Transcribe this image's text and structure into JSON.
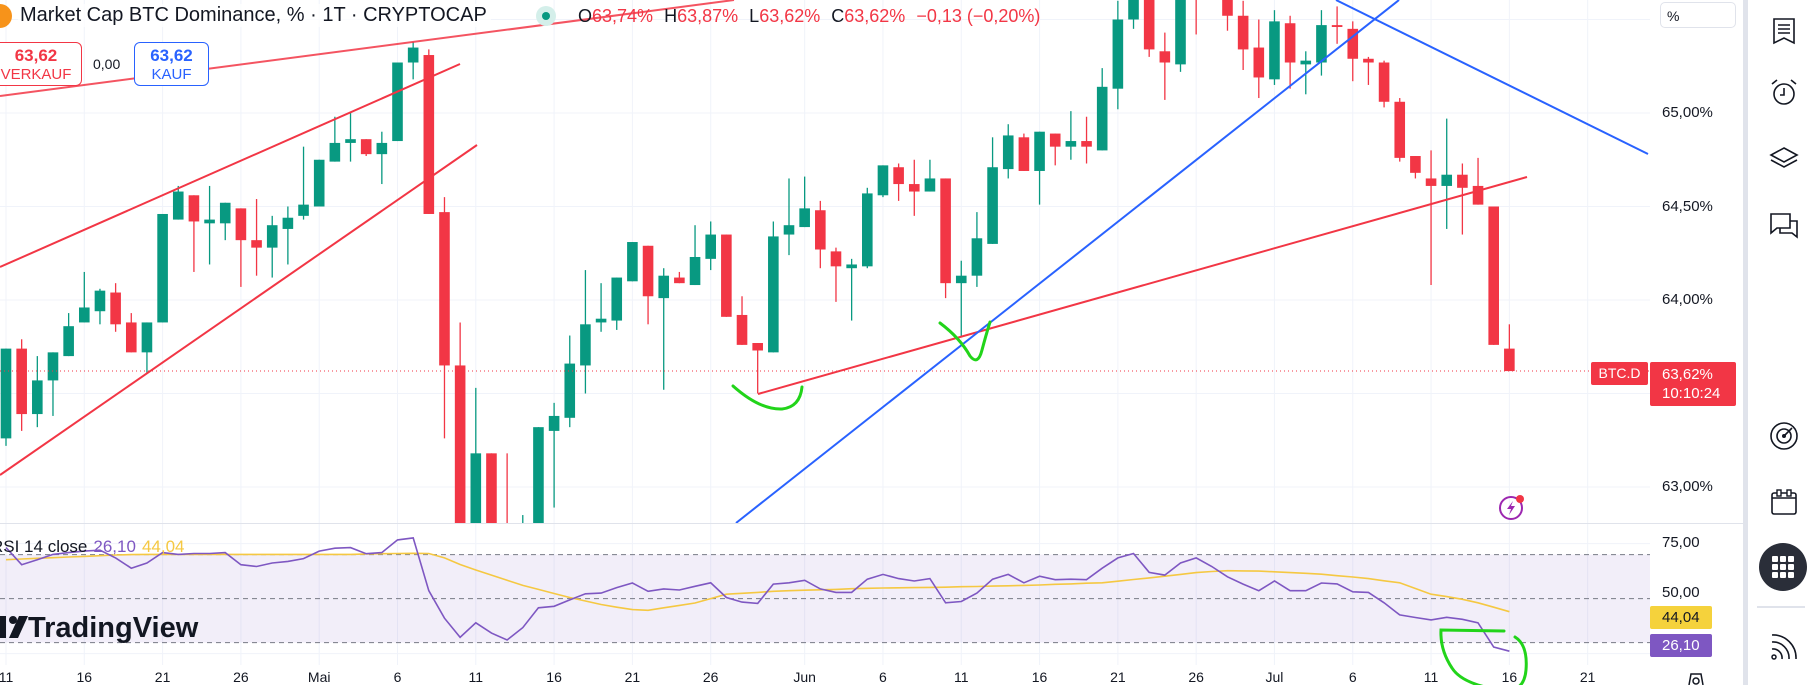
{
  "header": {
    "title": "Market Cap BTC Dominance, % · 1T · CRYPTOCAP",
    "ohlc": {
      "o_key": "O",
      "o": "63,74%",
      "h_key": "H",
      "h": "63,87%",
      "l_key": "L",
      "l": "63,62%",
      "c_key": "C",
      "c": "63,62%",
      "change": "−0,13 (−0,20%)"
    },
    "sell": {
      "price": "63,62",
      "label": "VERKAUF"
    },
    "spread": "0,00",
    "buy": {
      "price": "63,62",
      "label": "KAUF"
    }
  },
  "price_axis": {
    "unit_button": "%",
    "labels": [
      {
        "value": 65.0,
        "label": "65,00%"
      },
      {
        "value": 64.5,
        "label": "64,50%"
      },
      {
        "value": 64.0,
        "label": "64,00%"
      },
      {
        "value": 63.0,
        "label": "63,00%"
      }
    ],
    "symbol_tag": "BTC.D",
    "current_price": "63,62%",
    "countdown": "10:10:24"
  },
  "rsi": {
    "legend": "RSI 14 close",
    "value_label": "26,10",
    "ma_label": "44,04",
    "axis_labels": [
      {
        "value": 75,
        "label": "75,00"
      },
      {
        "value": 50,
        "label": "50,00"
      }
    ],
    "upper_band": 70,
    "middle_band": 50,
    "lower_band": 30
  },
  "watermark": "TradingView",
  "time_axis": [
    {
      "date": "04-11",
      "label": "11"
    },
    {
      "date": "04-16",
      "label": "16"
    },
    {
      "date": "04-21",
      "label": "21"
    },
    {
      "date": "04-26",
      "label": "26"
    },
    {
      "date": "05-01",
      "label": "Mai"
    },
    {
      "date": "05-06",
      "label": "6"
    },
    {
      "date": "05-11",
      "label": "11"
    },
    {
      "date": "05-16",
      "label": "16"
    },
    {
      "date": "05-21",
      "label": "21"
    },
    {
      "date": "05-26",
      "label": "26"
    },
    {
      "date": "06-01",
      "label": "Jun"
    },
    {
      "date": "06-06",
      "label": "6"
    },
    {
      "date": "06-11",
      "label": "11"
    },
    {
      "date": "06-16",
      "label": "16"
    },
    {
      "date": "06-21",
      "label": "21"
    },
    {
      "date": "06-26",
      "label": "26"
    },
    {
      "date": "07-01",
      "label": "Jul"
    },
    {
      "date": "07-06",
      "label": "6"
    },
    {
      "date": "07-11",
      "label": "11"
    },
    {
      "date": "07-16",
      "label": "16"
    },
    {
      "date": "07-21",
      "label": "21"
    }
  ],
  "colors": {
    "up": "#089981",
    "down": "#f23645",
    "rsi": "#7e57c2",
    "rsi_ma": "#f5c842",
    "trend_red": "#f23645",
    "trend_blue": "#2962ff",
    "annotation": "#22d41a"
  },
  "sidebar": {
    "icons": [
      "watchlist-icon",
      "alarm-clock-icon",
      "layers-icon",
      "chat-icon",
      "target-icon",
      "calendar-icon",
      "apps-grid-icon",
      "broadcast-icon"
    ]
  },
  "chart_data": {
    "type": "candlestick",
    "symbol": "BTC.D",
    "interval": "1T",
    "ylim": [
      62.82,
      65.6
    ],
    "grid": true,
    "candles": [
      [
        "04-11",
        63.26,
        63.74,
        63.22,
        63.74
      ],
      [
        "04-12",
        63.74,
        63.79,
        63.3,
        63.39
      ],
      [
        "04-13",
        63.39,
        63.7,
        63.32,
        63.57
      ],
      [
        "04-14",
        63.57,
        63.72,
        63.38,
        63.72
      ],
      [
        "04-15",
        63.7,
        63.93,
        63.7,
        63.86
      ],
      [
        "04-16",
        63.88,
        64.15,
        63.88,
        63.96
      ],
      [
        "04-17",
        63.94,
        64.06,
        63.87,
        64.05
      ],
      [
        "04-18",
        64.04,
        64.09,
        63.83,
        63.87
      ],
      [
        "04-19",
        63.88,
        63.93,
        63.72,
        63.72
      ],
      [
        "04-20",
        63.72,
        63.88,
        63.61,
        63.88
      ],
      [
        "04-21",
        63.88,
        64.46,
        63.88,
        64.46
      ],
      [
        "04-22",
        64.43,
        64.61,
        64.43,
        64.58
      ],
      [
        "04-23",
        64.56,
        64.56,
        64.15,
        64.42
      ],
      [
        "04-24",
        64.41,
        64.61,
        64.19,
        64.43
      ],
      [
        "04-25",
        64.41,
        64.52,
        64.32,
        64.52
      ],
      [
        "04-26",
        64.49,
        64.49,
        64.07,
        64.32
      ],
      [
        "04-27",
        64.32,
        64.54,
        64.13,
        64.28
      ],
      [
        "04-28",
        64.28,
        64.45,
        64.12,
        64.4
      ],
      [
        "04-29",
        64.38,
        64.5,
        64.19,
        64.44
      ],
      [
        "04-30",
        64.45,
        64.82,
        64.43,
        64.51
      ],
      [
        "05-01",
        64.5,
        64.75,
        64.5,
        64.75
      ],
      [
        "05-02",
        64.74,
        64.98,
        64.74,
        64.84
      ],
      [
        "05-03",
        64.84,
        65.0,
        64.74,
        64.86
      ],
      [
        "05-04",
        64.86,
        64.86,
        64.77,
        64.78
      ],
      [
        "05-05",
        64.78,
        64.9,
        64.62,
        64.84
      ],
      [
        "05-06",
        64.85,
        65.27,
        64.85,
        65.27
      ],
      [
        "05-07",
        65.27,
        65.38,
        65.18,
        65.35
      ],
      [
        "05-08",
        65.31,
        65.34,
        64.46,
        64.46
      ],
      [
        "05-09",
        64.47,
        64.55,
        63.26,
        63.65
      ],
      [
        "05-10",
        63.65,
        63.88,
        62.6,
        62.75
      ],
      [
        "05-11",
        62.7,
        63.53,
        62.62,
        63.18
      ],
      [
        "05-12",
        63.18,
        63.18,
        62.65,
        62.75
      ],
      [
        "05-13",
        62.8,
        63.18,
        62.55,
        62.7
      ],
      [
        "05-14",
        62.7,
        62.85,
        62.55,
        62.75
      ],
      [
        "05-15",
        62.78,
        63.32,
        62.7,
        63.32
      ],
      [
        "05-16",
        63.3,
        63.45,
        62.89,
        63.38
      ],
      [
        "05-17",
        63.37,
        63.81,
        63.32,
        63.66
      ],
      [
        "05-18",
        63.65,
        64.16,
        63.5,
        63.87
      ],
      [
        "05-19",
        63.88,
        64.09,
        63.83,
        63.9
      ],
      [
        "05-20",
        63.89,
        64.12,
        63.84,
        64.12
      ],
      [
        "05-21",
        64.1,
        64.31,
        64.1,
        64.31
      ],
      [
        "05-22",
        64.29,
        64.29,
        63.87,
        64.02
      ],
      [
        "05-23",
        64.01,
        64.17,
        63.52,
        64.13
      ],
      [
        "05-24",
        64.12,
        64.15,
        64.09,
        64.09
      ],
      [
        "05-25",
        64.08,
        64.4,
        64.08,
        64.23
      ],
      [
        "05-26",
        64.22,
        64.42,
        64.16,
        64.35
      ],
      [
        "05-27",
        64.35,
        64.35,
        63.91,
        63.91
      ],
      [
        "05-28",
        63.92,
        64.02,
        63.76,
        63.76
      ],
      [
        "05-29",
        63.77,
        63.77,
        63.5,
        63.73
      ],
      [
        "05-30",
        63.72,
        64.42,
        63.72,
        64.34
      ],
      [
        "05-31",
        64.35,
        64.65,
        64.24,
        64.4
      ],
      [
        "06-01",
        64.39,
        64.66,
        64.39,
        64.49
      ],
      [
        "06-02",
        64.48,
        64.53,
        64.17,
        64.27
      ],
      [
        "06-03",
        64.26,
        64.28,
        63.99,
        64.18
      ],
      [
        "06-04",
        64.17,
        64.22,
        63.89,
        64.19
      ],
      [
        "06-05",
        64.18,
        64.6,
        64.17,
        64.57
      ],
      [
        "06-06",
        64.56,
        64.72,
        64.55,
        64.72
      ],
      [
        "06-07",
        64.71,
        64.73,
        64.53,
        64.62
      ],
      [
        "06-08",
        64.62,
        64.75,
        64.45,
        64.58
      ],
      [
        "06-09",
        64.58,
        64.75,
        64.58,
        64.65
      ],
      [
        "06-10",
        64.65,
        64.65,
        64.01,
        64.09
      ],
      [
        "06-11",
        64.09,
        64.21,
        63.8,
        64.13
      ],
      [
        "06-12",
        64.13,
        64.47,
        64.07,
        64.33
      ],
      [
        "06-13",
        64.3,
        64.87,
        64.3,
        64.71
      ],
      [
        "06-14",
        64.7,
        64.94,
        64.65,
        64.88
      ],
      [
        "06-15",
        64.87,
        64.89,
        64.69,
        64.69
      ],
      [
        "06-16",
        64.69,
        64.9,
        64.51,
        64.9
      ],
      [
        "06-17",
        64.89,
        64.89,
        64.72,
        64.82
      ],
      [
        "06-18",
        64.82,
        65.01,
        64.75,
        64.85
      ],
      [
        "06-19",
        64.85,
        64.98,
        64.73,
        64.82
      ],
      [
        "06-20",
        64.8,
        65.24,
        64.8,
        65.14
      ],
      [
        "06-21",
        65.13,
        65.6,
        65.02,
        65.5
      ],
      [
        "06-22",
        65.5,
        65.82,
        65.45,
        65.75
      ],
      [
        "06-23",
        65.8,
        65.85,
        65.3,
        65.34
      ],
      [
        "06-24",
        65.33,
        65.43,
        65.07,
        65.27
      ],
      [
        "06-25",
        65.26,
        65.8,
        65.22,
        65.75
      ],
      [
        "06-26",
        65.75,
        65.9,
        65.42,
        65.72
      ],
      [
        "06-27",
        65.72,
        65.92,
        65.62,
        65.8
      ],
      [
        "06-28",
        65.75,
        65.85,
        65.44,
        65.52
      ],
      [
        "06-29",
        65.52,
        65.6,
        65.23,
        65.34
      ],
      [
        "06-30",
        65.35,
        65.5,
        65.08,
        65.19
      ],
      [
        "07-01",
        65.18,
        65.55,
        65.15,
        65.49
      ],
      [
        "07-02",
        65.48,
        65.52,
        65.13,
        65.27
      ],
      [
        "07-03",
        65.26,
        65.33,
        65.1,
        65.28
      ],
      [
        "07-04",
        65.27,
        65.55,
        65.2,
        65.47
      ],
      [
        "07-05",
        65.47,
        65.57,
        65.37,
        65.46
      ],
      [
        "07-06",
        65.45,
        65.49,
        65.17,
        65.29
      ],
      [
        "07-07",
        65.29,
        65.3,
        65.15,
        65.27
      ],
      [
        "07-08",
        65.27,
        65.28,
        65.03,
        65.06
      ],
      [
        "07-09",
        65.06,
        65.08,
        64.74,
        64.76
      ],
      [
        "07-10",
        64.77,
        64.77,
        64.65,
        64.68
      ],
      [
        "07-11",
        64.65,
        64.8,
        64.08,
        64.61
      ],
      [
        "07-12",
        64.61,
        64.97,
        64.38,
        64.67
      ],
      [
        "07-13",
        64.67,
        64.73,
        64.35,
        64.6
      ],
      [
        "07-14",
        64.61,
        64.76,
        64.51,
        64.51
      ],
      [
        "07-15",
        64.5,
        64.5,
        63.76,
        63.76
      ],
      [
        "07-16",
        63.74,
        63.87,
        63.62,
        63.62
      ]
    ],
    "current_price": 63.62,
    "rsi_values": [
      73.2,
      65.4,
      67.7,
      70.1,
      70.9,
      71.6,
      72.0,
      68.5,
      63.8,
      66.2,
      70.9,
      70.1,
      70.5,
      70.5,
      70.9,
      65.4,
      64.6,
      66.2,
      66.9,
      68.2,
      71.6,
      72.9,
      73.2,
      70.4,
      70.9,
      76.7,
      77.6,
      53.6,
      41.1,
      32.4,
      39.0,
      34.3,
      31.2,
      36.8,
      45.8,
      46.5,
      49.4,
      52.2,
      52.5,
      55.0,
      57.1,
      53.3,
      54.4,
      53.9,
      55.6,
      57.2,
      50.5,
      48.4,
      47.8,
      56.6,
      57.2,
      58.3,
      54.4,
      52.8,
      52.8,
      58.8,
      61.0,
      59.1,
      58.0,
      59.1,
      48.1,
      48.7,
      52.5,
      58.8,
      61.0,
      57.2,
      60.2,
      58.6,
      58.8,
      58.6,
      63.8,
      68.5,
      70.5,
      61.9,
      60.7,
      66.2,
      68.5,
      64.6,
      59.9,
      56.6,
      53.6,
      58.0,
      53.6,
      53.6,
      57.1,
      56.7,
      53.1,
      52.8,
      48.1,
      42.6,
      41.4,
      40.3,
      41.5,
      40.6,
      39.0,
      28.0,
      26.1
    ],
    "rsi_ma_values": [
      67.7,
      68.0,
      68.3,
      68.6,
      68.9,
      69.2,
      69.5,
      69.8,
      70.0,
      70.1,
      70.1,
      70.1,
      70.1,
      70.1,
      70.1,
      70.1,
      70.1,
      70.1,
      70.1,
      70.1,
      70.1,
      70.1,
      70.1,
      70.3,
      70.4,
      70.5,
      70.6,
      70.5,
      68.5,
      65.5,
      63.0,
      60.7,
      58.3,
      56.0,
      54.2,
      52.3,
      50.5,
      48.9,
      47.3,
      46.1,
      45.0,
      44.7,
      45.8,
      46.9,
      48.0,
      50.0,
      52.0,
      52.4,
      52.8,
      53.3,
      53.6,
      53.8,
      54.0,
      54.2,
      54.5,
      54.7,
      54.8,
      54.9,
      55.0,
      55.1,
      55.2,
      55.4,
      55.5,
      55.7,
      55.8,
      56.0,
      56.2,
      56.5,
      56.7,
      57.0,
      57.2,
      57.9,
      58.7,
      59.4,
      60.2,
      61.0,
      61.8,
      62.3,
      62.7,
      62.6,
      62.5,
      62.2,
      61.8,
      61.5,
      61.1,
      60.4,
      59.8,
      59.1,
      58.1,
      57.2,
      54.6,
      52.0,
      50.9,
      49.7,
      48.1,
      46.1,
      44.04
    ]
  }
}
